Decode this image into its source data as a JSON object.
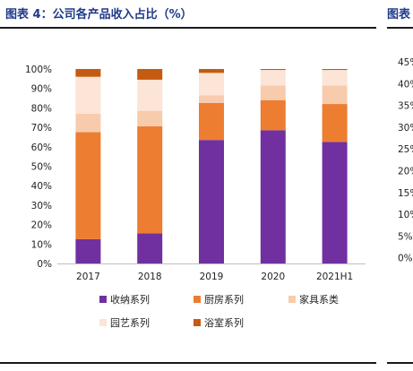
{
  "chart_title": "图表 4：公司各产品收入占比（%）",
  "next_chart_title": "图表",
  "chart_data": {
    "type": "bar",
    "stacked": true,
    "categories": [
      "2017",
      "2018",
      "2019",
      "2020",
      "2021H1"
    ],
    "ylim": [
      0,
      100
    ],
    "y_ticks": [
      "0%",
      "10%",
      "20%",
      "30%",
      "40%",
      "50%",
      "60%",
      "70%",
      "80%",
      "90%",
      "100%"
    ],
    "series": [
      {
        "name": "收纳系列",
        "color": "#7030a0",
        "values": [
          12.5,
          15.5,
          63.5,
          68.5,
          62.5
        ]
      },
      {
        "name": "厨房系列",
        "color": "#ed7d31",
        "values": [
          55,
          55,
          19,
          15.5,
          19.5
        ]
      },
      {
        "name": "家具系类",
        "color": "#f8cbad",
        "values": [
          9.5,
          8,
          4,
          7.5,
          9.5
        ]
      },
      {
        "name": "园艺系列",
        "color": "#fce4d6",
        "values": [
          19,
          16,
          11.5,
          8,
          8
        ]
      },
      {
        "name": "浴室系列",
        "color": "#c55a11",
        "values": [
          4,
          5.5,
          2,
          0.5,
          0.5
        ]
      }
    ],
    "legend_position": "bottom",
    "grid": false
  },
  "partial_right_axis_ticks": [
    "45%",
    "40%",
    "35%",
    "30%",
    "25%",
    "20%",
    "15%",
    "10%",
    "5%",
    "0%"
  ]
}
